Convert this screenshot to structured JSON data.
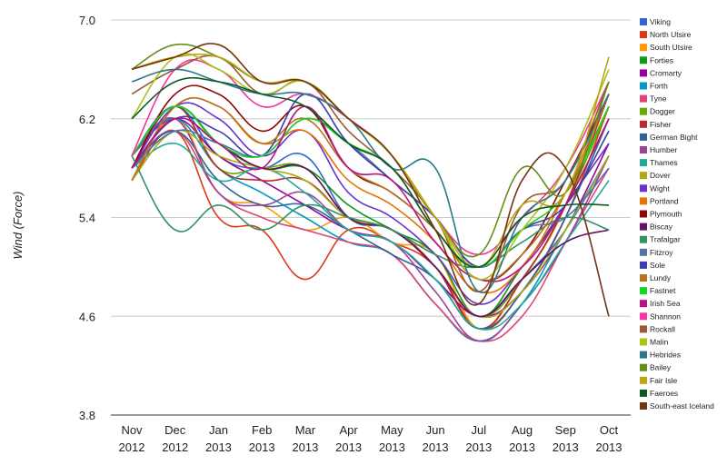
{
  "chart_data": {
    "type": "line",
    "ylabel": "Wind (Force)",
    "xlabel": "",
    "ylim": [
      3.8,
      7.0
    ],
    "yticks": [
      "7.0",
      "6.2",
      "5.4",
      "4.6",
      "3.8"
    ],
    "ytick_values": [
      7.0,
      6.2,
      5.4,
      4.6,
      3.8
    ],
    "categories": [
      [
        "Nov",
        "2012"
      ],
      [
        "Dec",
        "2012"
      ],
      [
        "Jan",
        "2013"
      ],
      [
        "Feb",
        "2013"
      ],
      [
        "Mar",
        "2013"
      ],
      [
        "Apr",
        "2013"
      ],
      [
        "May",
        "2013"
      ],
      [
        "Jun",
        "2013"
      ],
      [
        "Jul",
        "2013"
      ],
      [
        "Aug",
        "2013"
      ],
      [
        "Sep",
        "2013"
      ],
      [
        "Oct",
        "2013"
      ]
    ],
    "legend_position": "right",
    "series": [
      {
        "name": "Viking",
        "color": "#3366cc",
        "values": [
          5.9,
          6.3,
          5.9,
          5.8,
          5.9,
          5.4,
          5.3,
          5.0,
          4.6,
          4.9,
          5.3,
          5.9
        ]
      },
      {
        "name": "North Utsire",
        "color": "#dc3912",
        "values": [
          5.7,
          6.1,
          5.4,
          5.3,
          4.9,
          5.3,
          5.2,
          5.0,
          4.5,
          4.8,
          5.4,
          6.3
        ]
      },
      {
        "name": "South Utsire",
        "color": "#ff9900",
        "values": [
          5.7,
          6.2,
          5.6,
          5.5,
          5.3,
          5.4,
          5.2,
          5.1,
          4.5,
          4.9,
          5.5,
          6.5
        ]
      },
      {
        "name": "Forties",
        "color": "#109618",
        "values": [
          5.9,
          6.3,
          6.0,
          5.8,
          5.8,
          5.5,
          5.3,
          5.1,
          4.6,
          5.0,
          5.5,
          6.2
        ]
      },
      {
        "name": "Cromarty",
        "color": "#990099",
        "values": [
          5.9,
          6.2,
          5.9,
          5.7,
          5.5,
          5.3,
          5.2,
          4.9,
          4.6,
          4.8,
          5.3,
          6.0
        ]
      },
      {
        "name": "Forth",
        "color": "#0099c6",
        "values": [
          5.9,
          6.2,
          5.8,
          5.6,
          5.4,
          5.2,
          5.1,
          4.7,
          4.4,
          4.7,
          5.3,
          5.9
        ]
      },
      {
        "name": "Tyne",
        "color": "#dd4477",
        "values": [
          5.8,
          6.1,
          5.6,
          5.4,
          5.3,
          5.2,
          5.1,
          4.7,
          4.4,
          4.6,
          5.2,
          5.8
        ]
      },
      {
        "name": "Dogger",
        "color": "#66aa00",
        "values": [
          5.8,
          6.3,
          5.8,
          5.8,
          5.8,
          5.4,
          5.3,
          5.0,
          4.6,
          4.9,
          5.5,
          6.3
        ]
      },
      {
        "name": "Fisher",
        "color": "#b82e2e",
        "values": [
          5.8,
          6.3,
          5.8,
          5.7,
          5.7,
          5.4,
          5.3,
          5.0,
          4.5,
          4.9,
          5.5,
          6.4
        ]
      },
      {
        "name": "German Bight",
        "color": "#316395",
        "values": [
          5.8,
          6.1,
          5.7,
          5.5,
          5.5,
          5.3,
          5.1,
          4.9,
          4.5,
          4.8,
          5.4,
          6.2
        ]
      },
      {
        "name": "Humber",
        "color": "#994499",
        "values": [
          5.9,
          6.2,
          5.6,
          5.5,
          5.6,
          5.3,
          5.2,
          4.8,
          4.4,
          4.7,
          5.2,
          5.9
        ]
      },
      {
        "name": "Thames",
        "color": "#22aa99",
        "values": [
          5.8,
          6.0,
          5.7,
          5.8,
          5.6,
          5.3,
          5.2,
          4.9,
          4.5,
          4.7,
          5.2,
          5.7
        ]
      },
      {
        "name": "Dover",
        "color": "#aaaa11",
        "values": [
          5.7,
          6.1,
          5.9,
          5.8,
          5.7,
          5.4,
          5.3,
          5.0,
          4.6,
          4.8,
          5.3,
          5.9
        ]
      },
      {
        "name": "Wight",
        "color": "#6633cc",
        "values": [
          5.8,
          6.3,
          6.2,
          5.9,
          6.1,
          5.6,
          5.4,
          5.1,
          4.7,
          5.0,
          5.5,
          6.0
        ]
      },
      {
        "name": "Portland",
        "color": "#e67300",
        "values": [
          5.7,
          6.3,
          6.3,
          6.0,
          6.1,
          5.7,
          5.5,
          5.2,
          4.8,
          5.0,
          5.6,
          6.4
        ]
      },
      {
        "name": "Plymouth",
        "color": "#8b0707",
        "values": [
          5.8,
          6.4,
          6.4,
          6.1,
          6.3,
          5.8,
          5.6,
          5.3,
          4.9,
          5.1,
          5.7,
          6.4
        ]
      },
      {
        "name": "Biscay",
        "color": "#651067",
        "values": [
          5.8,
          6.2,
          6.0,
          5.8,
          5.8,
          5.4,
          5.3,
          5.0,
          4.6,
          4.9,
          5.2,
          5.3
        ]
      },
      {
        "name": "Trafalgar",
        "color": "#329262",
        "values": [
          5.9,
          5.3,
          5.5,
          5.3,
          5.5,
          5.4,
          5.3,
          5.1,
          5.0,
          5.2,
          5.4,
          5.3
        ]
      },
      {
        "name": "Fitzroy",
        "color": "#5574a6",
        "values": [
          5.8,
          6.1,
          6.0,
          5.9,
          6.2,
          6.0,
          5.7,
          5.4,
          5.0,
          5.3,
          5.4,
          5.8
        ]
      },
      {
        "name": "Sole",
        "color": "#3b3eac",
        "values": [
          5.8,
          6.2,
          6.1,
          5.9,
          6.4,
          6.0,
          5.7,
          5.4,
          5.0,
          5.3,
          5.5,
          6.1
        ]
      },
      {
        "name": "Lundy",
        "color": "#b77322",
        "values": [
          5.7,
          6.3,
          6.3,
          6.0,
          6.2,
          5.8,
          5.6,
          5.3,
          4.9,
          5.1,
          5.6,
          6.3
        ]
      },
      {
        "name": "Fastnet",
        "color": "#16d620",
        "values": [
          5.9,
          6.3,
          6.0,
          5.9,
          6.2,
          6.0,
          5.8,
          5.3,
          5.0,
          5.3,
          5.6,
          6.3
        ]
      },
      {
        "name": "Irish Sea",
        "color": "#b91383",
        "values": [
          5.8,
          6.2,
          6.0,
          5.8,
          6.3,
          5.8,
          5.7,
          5.2,
          4.9,
          5.0,
          5.5,
          6.2
        ]
      },
      {
        "name": "Shannon",
        "color": "#f4359e",
        "values": [
          5.9,
          6.6,
          6.6,
          6.3,
          6.4,
          6.2,
          5.9,
          5.4,
          5.1,
          5.4,
          5.8,
          6.5
        ]
      },
      {
        "name": "Rockall",
        "color": "#9c5935",
        "values": [
          6.4,
          6.6,
          6.7,
          6.4,
          6.5,
          6.1,
          5.8,
          5.4,
          4.8,
          5.5,
          5.7,
          6.5
        ]
      },
      {
        "name": "Malin",
        "color": "#a9c413",
        "values": [
          6.2,
          6.7,
          6.6,
          6.4,
          6.5,
          6.2,
          5.9,
          5.4,
          4.9,
          5.3,
          5.8,
          6.6
        ]
      },
      {
        "name": "Hebrides",
        "color": "#2a778d",
        "values": [
          6.5,
          6.6,
          6.5,
          6.4,
          6.4,
          6.2,
          5.8,
          5.8,
          4.8,
          5.4,
          5.7,
          6.4
        ]
      },
      {
        "name": "Bailey",
        "color": "#668d1c",
        "values": [
          6.6,
          6.8,
          6.7,
          6.5,
          6.5,
          6.2,
          5.9,
          5.4,
          5.1,
          5.8,
          5.6,
          6.5
        ]
      },
      {
        "name": "Fair Isle",
        "color": "#bea413",
        "values": [
          6.6,
          6.7,
          6.7,
          6.5,
          6.5,
          6.2,
          5.9,
          5.4,
          5.0,
          5.5,
          5.6,
          6.7
        ]
      },
      {
        "name": "Faeroes",
        "color": "#0c5922",
        "values": [
          6.2,
          6.5,
          6.5,
          6.4,
          6.3,
          6.0,
          5.8,
          5.3,
          5.0,
          5.4,
          5.5,
          5.5
        ]
      },
      {
        "name": "South-east Iceland",
        "color": "#743411",
        "values": [
          6.6,
          6.7,
          6.8,
          6.5,
          6.5,
          6.2,
          5.9,
          5.3,
          4.7,
          5.7,
          5.8,
          4.6
        ]
      }
    ]
  }
}
